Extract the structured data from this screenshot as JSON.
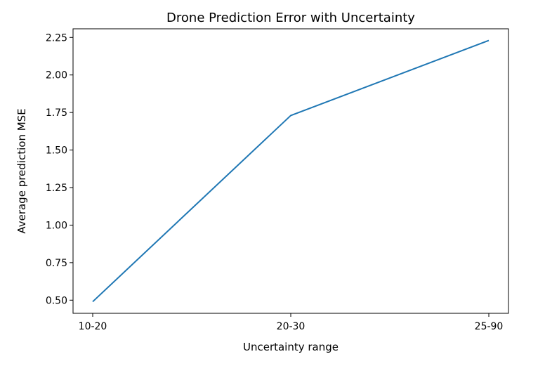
{
  "chart_data": {
    "type": "line",
    "title": "Drone Prediction Error with Uncertainty",
    "xlabel": "Uncertainty range",
    "ylabel": "Average prediction MSE",
    "categories": [
      "10-20",
      "20-30",
      "25-90"
    ],
    "series": [
      {
        "values": [
          0.49,
          1.73,
          2.23
        ],
        "color": "#1f77b4"
      }
    ],
    "ylim": [
      0.4125,
      2.3075
    ],
    "yticks": [
      0.5,
      0.75,
      1.0,
      1.25,
      1.5,
      1.75,
      2.0,
      2.25
    ],
    "ytick_labels": [
      "0.50",
      "0.75",
      "1.00",
      "1.25",
      "1.50",
      "1.75",
      "2.00",
      "2.25"
    ],
    "grid": false,
    "legend": "none"
  }
}
